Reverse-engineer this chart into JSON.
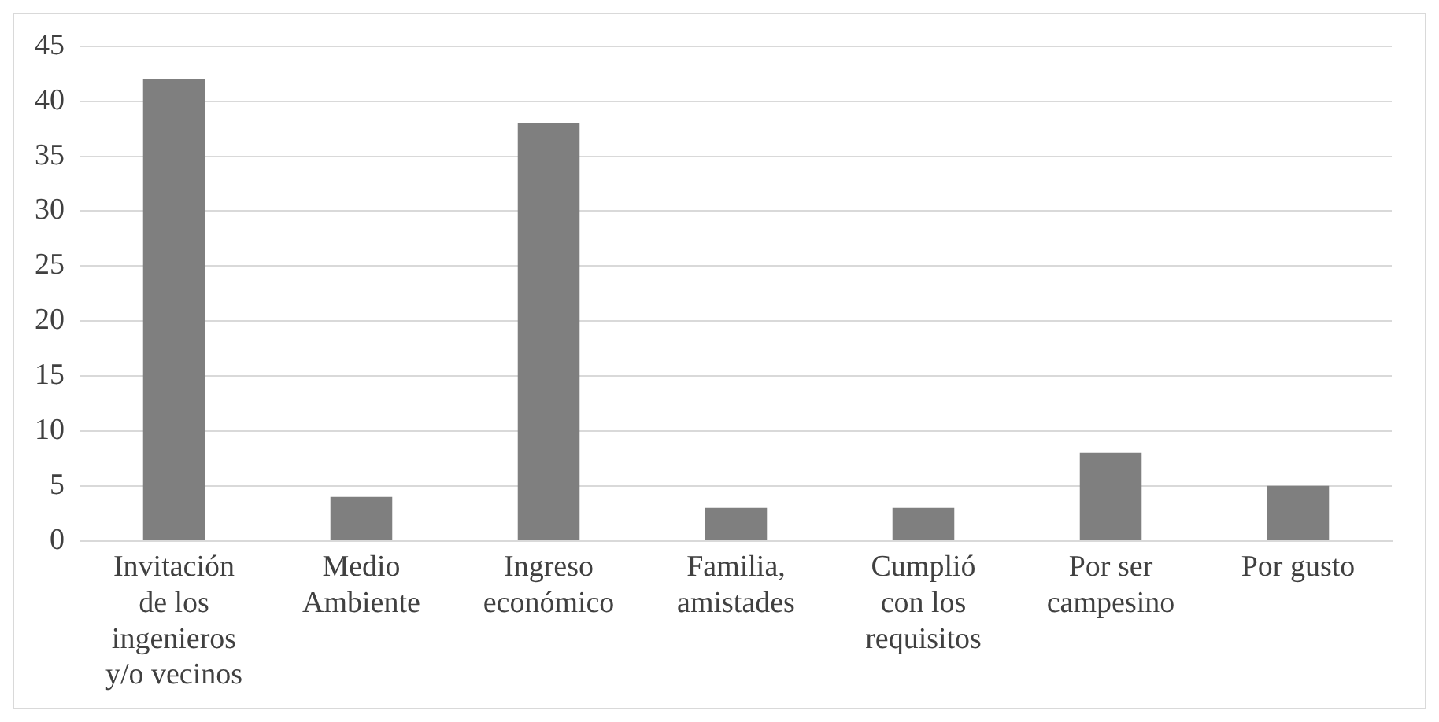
{
  "chart_data": {
    "type": "bar",
    "categories": [
      "Invitación de los ingenieros y/o vecinos",
      "Medio Ambiente",
      "Ingreso económico",
      "Familia, amistades",
      "Cumplió con los requisitos",
      "Por ser campesino",
      "Por gusto"
    ],
    "values": [
      42,
      4,
      38,
      3,
      3,
      8,
      5
    ],
    "color": "#7f7f7f",
    "ylim": [
      0,
      45
    ],
    "yticks": [
      0,
      5,
      10,
      15,
      20,
      25,
      30,
      35,
      40,
      45
    ],
    "grid": "y",
    "legend": false
  }
}
